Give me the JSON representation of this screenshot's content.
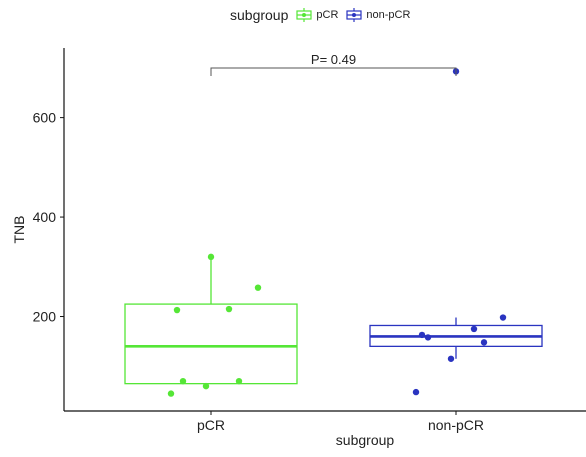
{
  "chart_data": {
    "type": "boxplot",
    "title": "",
    "xlabel": "subgroup",
    "ylabel": "TNB",
    "ylim": [
      10,
      740
    ],
    "yticks": [
      200,
      400,
      600
    ],
    "categories": [
      "pCR",
      "non-pCR"
    ],
    "legend": {
      "title": "subgroup",
      "position": "top",
      "entries": [
        "pCR",
        "non-pCR"
      ]
    },
    "series": [
      {
        "name": "pCR",
        "color": "#55e636",
        "box": {
          "min": 65,
          "q1": 65,
          "median": 140,
          "q3": 225,
          "max": 320
        },
        "points": [
          320,
          258,
          215,
          213,
          70,
          70,
          60,
          45
        ]
      },
      {
        "name": "non-pCR",
        "color": "#2a34c0",
        "box": {
          "min": 115,
          "q1": 140,
          "median": 160,
          "q3": 182,
          "max": 198
        },
        "points": [
          693,
          198,
          175,
          163,
          158,
          148,
          115,
          48
        ]
      }
    ],
    "annotation": {
      "text": "P= 0.49",
      "between": [
        "pCR",
        "non-pCR"
      ]
    },
    "grid": false
  }
}
